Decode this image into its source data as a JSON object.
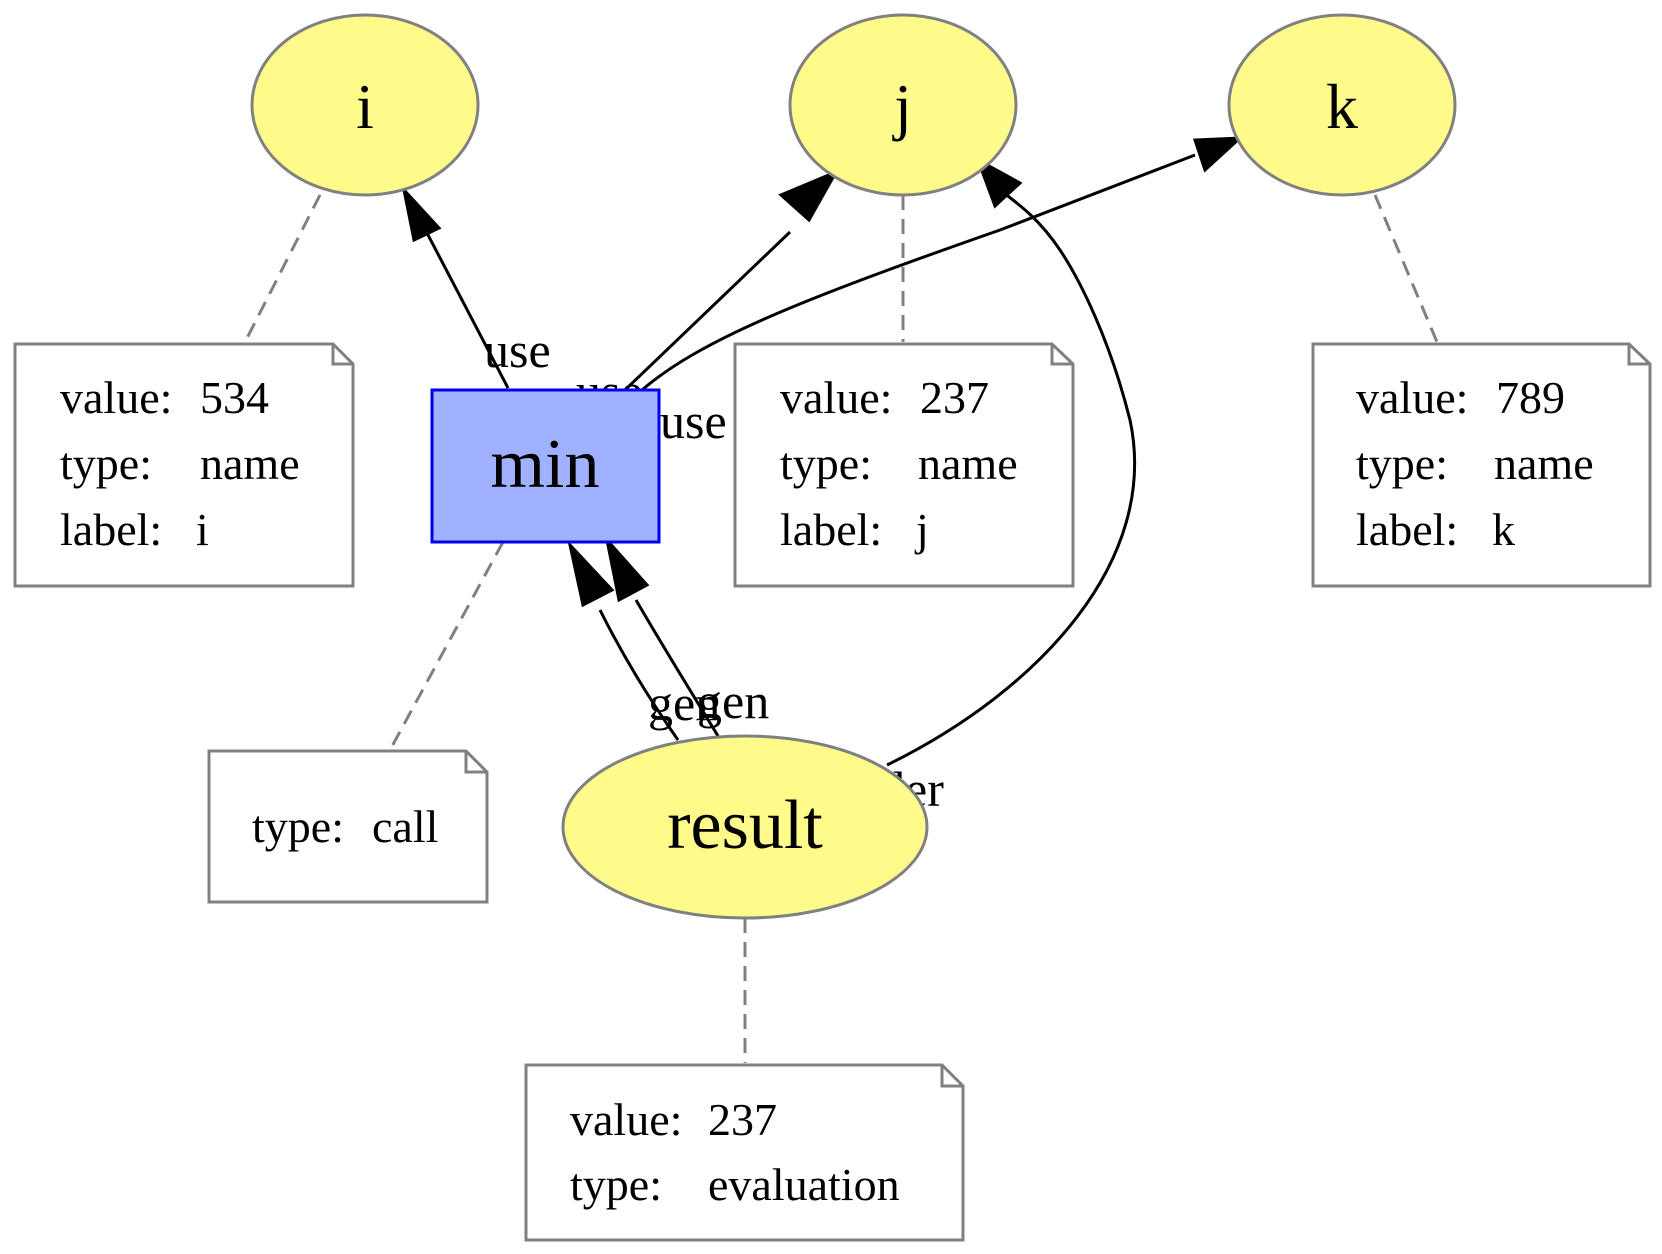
{
  "nodes": {
    "i": {
      "label": "i"
    },
    "j": {
      "label": "j"
    },
    "k": {
      "label": "k"
    },
    "min": {
      "label": "min"
    },
    "result": {
      "label": "result"
    }
  },
  "notes": {
    "i": {
      "lines": [
        {
          "key": "value:",
          "val": "534"
        },
        {
          "key": "type:",
          "val": "name"
        },
        {
          "key": "label:",
          "val": "i"
        }
      ]
    },
    "j": {
      "lines": [
        {
          "key": "value:",
          "val": "237"
        },
        {
          "key": "type:",
          "val": "name"
        },
        {
          "key": "label:",
          "val": "j"
        }
      ]
    },
    "k": {
      "lines": [
        {
          "key": "value:",
          "val": "789"
        },
        {
          "key": "type:",
          "val": "name"
        },
        {
          "key": "label:",
          "val": "k"
        }
      ]
    },
    "min": {
      "lines": [
        {
          "key": "type:",
          "val": "call"
        }
      ]
    },
    "result": {
      "lines": [
        {
          "key": "value:",
          "val": "237"
        },
        {
          "key": "type:",
          "val": "evaluation"
        }
      ]
    }
  },
  "edges": {
    "min_i": {
      "label": "use"
    },
    "min_j": {
      "label": "use"
    },
    "min_k": {
      "label": "use"
    },
    "result_min_1": {
      "label": "gen"
    },
    "result_min_2": {
      "label": "gen"
    },
    "result_j": {
      "label": "der"
    }
  },
  "colors": {
    "variable_fill": "#fffb8a",
    "call_fill": "#a0b2ff",
    "call_stroke": "#0000ee",
    "outline": "#808080"
  }
}
